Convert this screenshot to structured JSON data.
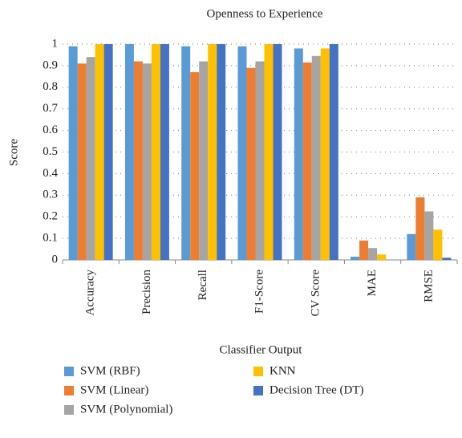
{
  "chart_data": {
    "type": "bar",
    "title": "Openness to Experience",
    "x_label": "Classifier Output",
    "y_label": "Score",
    "categories": [
      "Accuracy",
      "Precision",
      "Recall",
      "F1-Score",
      "CV Score",
      "MAE",
      "RMSE"
    ],
    "series": [
      {
        "name": "SVM (RBF)",
        "color": "#5b9bd5",
        "values": [
          0.99,
          1.0,
          0.99,
          0.99,
          0.98,
          0.015,
          0.12
        ]
      },
      {
        "name": "SVM (Linear)",
        "color": "#ed7d31",
        "values": [
          0.91,
          0.92,
          0.87,
          0.89,
          0.915,
          0.09,
          0.29
        ]
      },
      {
        "name": "SVM (Polynomial)",
        "color": "#a5a5a5",
        "values": [
          0.94,
          0.91,
          0.92,
          0.92,
          0.945,
          0.055,
          0.225
        ]
      },
      {
        "name": "KNN",
        "color": "#ffc000",
        "values": [
          1.0,
          1.0,
          1.0,
          1.0,
          0.98,
          0.025,
          0.14
        ]
      },
      {
        "name": "Decision Tree (DT)",
        "color": "#4472c4",
        "values": [
          1.0,
          1.0,
          1.0,
          1.0,
          1.0,
          0,
          0.01
        ]
      }
    ],
    "ylim": [
      0,
      1
    ],
    "yticks": [
      0,
      0.1,
      0.2,
      0.3,
      0.4,
      0.5,
      0.6,
      0.7,
      0.8,
      0.9,
      1
    ],
    "grid": true,
    "legend": "bottom"
  }
}
